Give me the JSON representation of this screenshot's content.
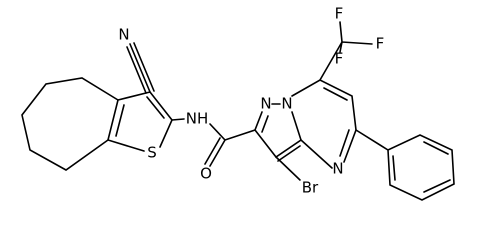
{
  "atoms": [
    {
      "label": "N"
    },
    {
      "label": "S"
    },
    {
      "label": "NH"
    },
    {
      "label": "O"
    },
    {
      "label": "N"
    },
    {
      "label": "N"
    },
    {
      "label": "N"
    },
    {
      "label": "Br"
    },
    {
      "label": "F"
    },
    {
      "label": "F"
    },
    {
      "label": "F"
    }
  ]
}
